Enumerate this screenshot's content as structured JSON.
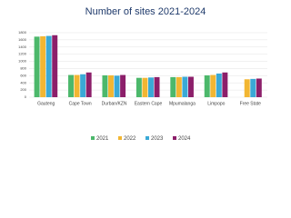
{
  "chart_data": {
    "type": "bar",
    "title": "Number of sites 2021-2024",
    "categories": [
      "Gauteng",
      "Cape Town",
      "Durban/KZN",
      "Eastern Cape",
      "Mpumalanga",
      "Limpopo",
      "Free State"
    ],
    "series": [
      {
        "name": "2021",
        "color": "#4cb86b",
        "values": [
          1690,
          620,
          610,
          540,
          560,
          610,
          null
        ]
      },
      {
        "name": "2022",
        "color": "#f2b632",
        "values": [
          1700,
          620,
          610,
          540,
          560,
          620,
          500
        ]
      },
      {
        "name": "2023",
        "color": "#3aa9d6",
        "values": [
          1710,
          640,
          600,
          550,
          570,
          660,
          510
        ]
      },
      {
        "name": "2024",
        "color": "#8c1f6a",
        "values": [
          1730,
          690,
          620,
          560,
          570,
          690,
          520
        ]
      }
    ],
    "ylim": [
      0,
      1800
    ],
    "yticks": [
      0,
      200,
      400,
      600,
      800,
      1000,
      1200,
      1400,
      1600,
      1800
    ],
    "grid": true
  }
}
